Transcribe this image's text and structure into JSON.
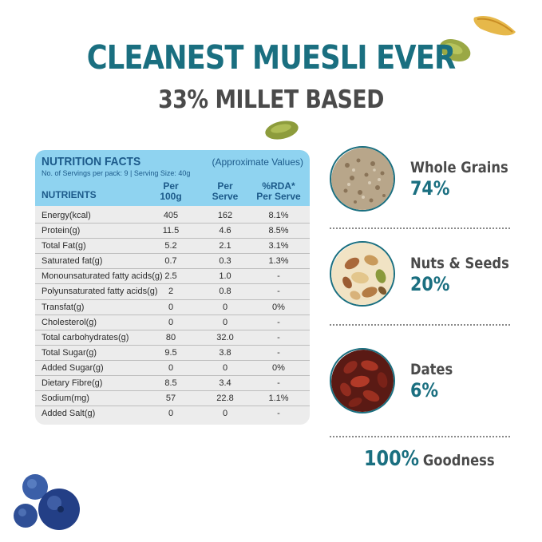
{
  "header": {
    "headline": "CLEANEST MUESLI EVER",
    "subhead": "33% MILLET BASED"
  },
  "nutrition": {
    "title": "NUTRITION FACTS",
    "approx": "(Approximate Values)",
    "servings": "No. of Servings per pack:  9  | Serving Size: 40g",
    "col_nutrients": "NUTRIENTS",
    "col_per100_l1": "Per",
    "col_per100_l2": "100g",
    "col_perserve_l1": "Per",
    "col_perserve_l2": "Serve",
    "col_rda_l1": "%RDA*",
    "col_rda_l2": "Per Serve",
    "rows": [
      {
        "name": "Energy(kcal)",
        "per100": "405",
        "perserve": "162",
        "rda": "8.1%"
      },
      {
        "name": "Protein(g)",
        "per100": "11.5",
        "perserve": "4.6",
        "rda": "8.5%"
      },
      {
        "name": "Total Fat(g)",
        "per100": "5.2",
        "perserve": "2.1",
        "rda": "3.1%"
      },
      {
        "name": "Saturated fat(g)",
        "per100": "0.7",
        "perserve": "0.3",
        "rda": "1.3%"
      },
      {
        "name": "Monounsaturated fatty acids(g)",
        "per100": "2.5",
        "perserve": "1.0",
        "rda": "-"
      },
      {
        "name": "Polyunsaturated fatty acids(g)",
        "per100": "2",
        "perserve": "0.8",
        "rda": "-"
      },
      {
        "name": "Transfat(g)",
        "per100": "0",
        "perserve": "0",
        "rda": "0%"
      },
      {
        "name": "Cholesterol(g)",
        "per100": "0",
        "perserve": "0",
        "rda": "-"
      },
      {
        "name": "Total carbohydrates(g)",
        "per100": "80",
        "perserve": "32.0",
        "rda": "-"
      },
      {
        "name": "Total Sugar(g)",
        "per100": "9.5",
        "perserve": "3.8",
        "rda": "-"
      },
      {
        "name": "Added Sugar(g)",
        "per100": "0",
        "perserve": "0",
        "rda": "0%"
      },
      {
        "name": "Dietary Fibre(g)",
        "per100": "8.5",
        "perserve": "3.4",
        "rda": "-"
      },
      {
        "name": "Sodium(mg)",
        "per100": "57",
        "perserve": "22.8",
        "rda": "1.1%"
      },
      {
        "name": "Added Salt(g)",
        "per100": "0",
        "perserve": "0",
        "rda": "-"
      }
    ]
  },
  "ingredients": [
    {
      "name": "Whole Grains",
      "pct": "74%",
      "icon": "grains-icon"
    },
    {
      "name": "Nuts & Seeds",
      "pct": "20%",
      "icon": "nuts-icon"
    },
    {
      "name": "Dates",
      "pct": "6%",
      "icon": "dates-icon"
    }
  ],
  "goodness": {
    "pct": "100%",
    "text": "Goodness"
  },
  "colors": {
    "teal": "#1a6f80",
    "header_blue": "#8fd3f0",
    "card_gray": "#ececec"
  }
}
